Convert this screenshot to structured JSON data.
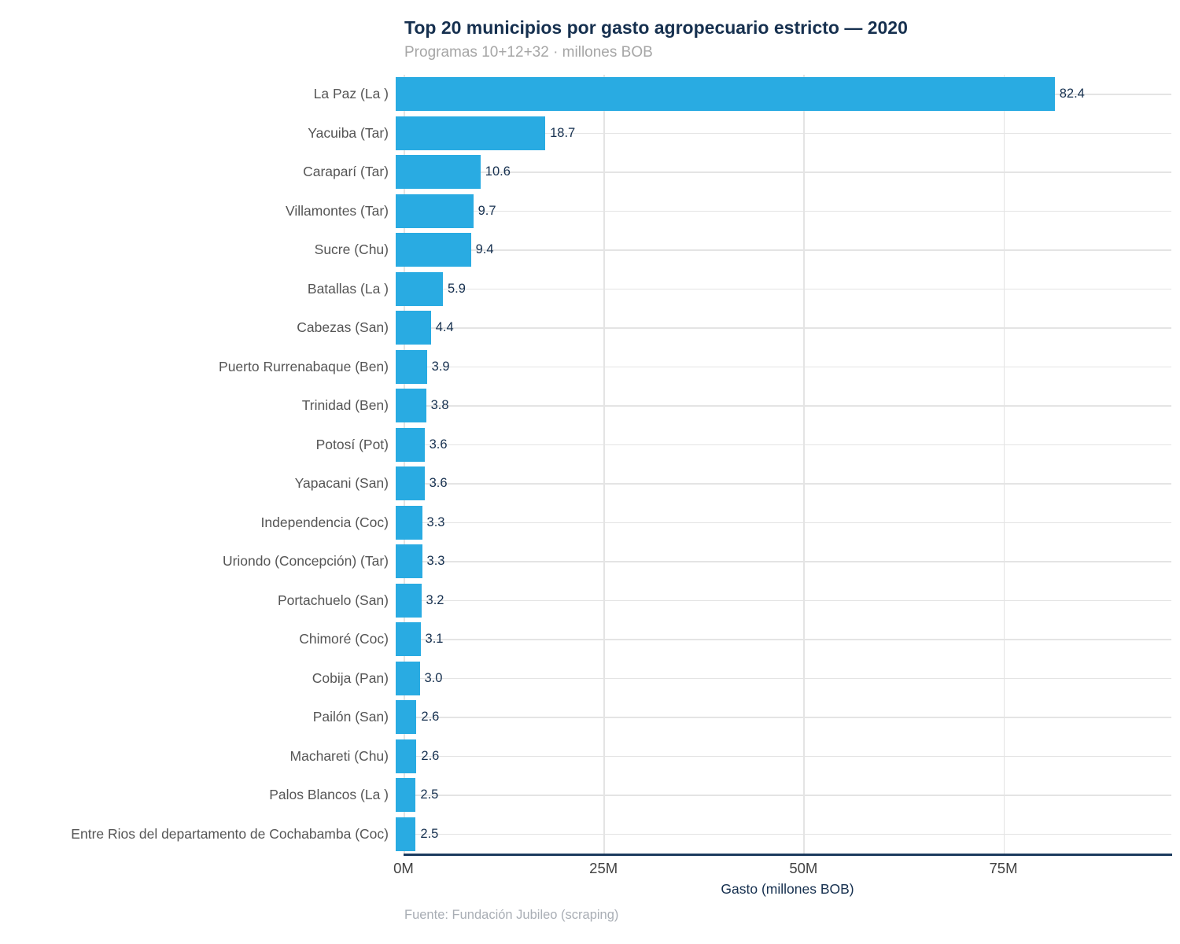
{
  "colors": {
    "bar": "#29abe2",
    "title": "#16304f",
    "category_label": "#555555",
    "tick_label": "#424242",
    "subtitle": "#a6a6a6",
    "source": "#a9aeb5",
    "gridline": "#e4e4e4",
    "axis_line": "#1b3a5e"
  },
  "chart_data": {
    "type": "bar",
    "orientation": "horizontal",
    "title": "Top 20 municipios por gasto agropecuario estricto — 2020",
    "subtitle": "Programas 10+12+32 · millones BOB",
    "xlabel": "Gasto (millones BOB)",
    "source": "Fuente: Fundación Jubileo (scraping)",
    "categories": [
      "La Paz (La )",
      "Yacuiba (Tar)",
      "Caraparí (Tar)",
      "Villamontes (Tar)",
      "Sucre (Chu)",
      "Batallas (La )",
      "Cabezas (San)",
      "Puerto Rurrenabaque (Ben)",
      "Trinidad (Ben)",
      "Potosí (Pot)",
      "Yapacani (San)",
      "Independencia (Coc)",
      "Uriondo (Concepción) (Tar)",
      "Portachuelo (San)",
      "Chimoré (Coc)",
      "Cobija (Pan)",
      "Pailón (San)",
      "Machareti (Chu)",
      "Palos Blancos (La )",
      "Entre Rios del departamento de Cochabamba (Coc)"
    ],
    "values": [
      82.4,
      18.7,
      10.6,
      9.7,
      9.4,
      5.9,
      4.4,
      3.9,
      3.8,
      3.6,
      3.6,
      3.3,
      3.3,
      3.2,
      3.1,
      3.0,
      2.6,
      2.6,
      2.5,
      2.5
    ],
    "value_labels": [
      "82.4",
      "18.7",
      "10.6",
      "9.7",
      "9.4",
      "5.9",
      "4.4",
      "3.9",
      "3.8",
      "3.6",
      "3.6",
      "3.3",
      "3.3",
      "3.2",
      "3.1",
      "3.0",
      "2.6",
      "2.6",
      "2.5",
      "2.5"
    ],
    "x_ticks": [
      "0M",
      "25M",
      "50M",
      "75M"
    ],
    "x_tick_values": [
      0,
      25,
      50,
      75
    ],
    "xlim": [
      0,
      96
    ],
    "grid": true,
    "legend": false
  }
}
